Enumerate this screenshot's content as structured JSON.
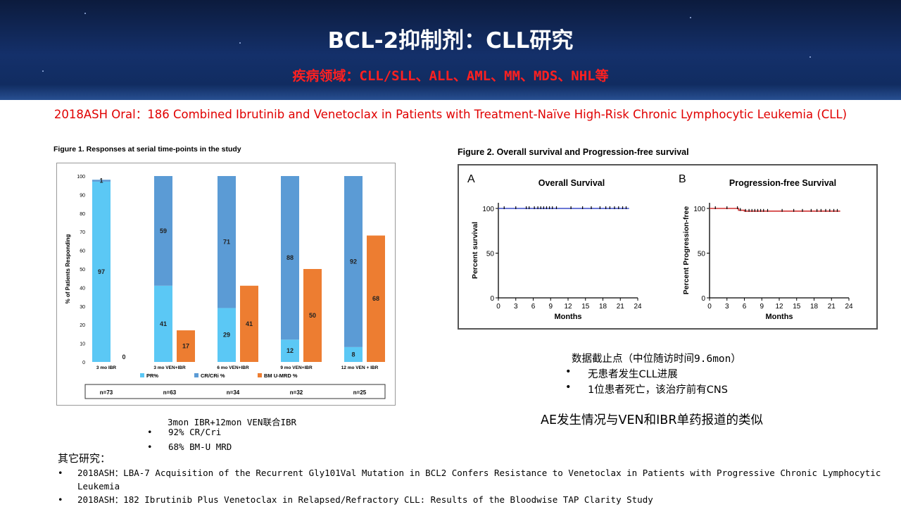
{
  "header": {
    "title": "BCL-2抑制剂：CLL研究",
    "subtitle": "疾病领域：CLL/SLL、ALL、AML、MM、MDS、NHL等"
  },
  "oral_title": "2018ASH Oral：186 Combined Ibrutinib and Venetoclax in Patients with Treatment-Naïve High-Risk Chronic Lymphocytic Leukemia (CLL)",
  "figure1": {
    "caption": "Figure 1. Responses at serial time-points in the study"
  },
  "figure2": {
    "caption": "Figure 2. Overall survival and Progression-free survival"
  },
  "chart_data": [
    {
      "type": "bar",
      "ylabel": "% of Patients Responding",
      "ylim": [
        0,
        100
      ],
      "yticks": [
        0,
        10,
        20,
        30,
        40,
        50,
        60,
        70,
        80,
        90,
        100
      ],
      "categories": [
        "3 mo IBR",
        "3 mo VEN+IBR",
        "6 mo VEN+IBR",
        "9 mo VEN+IBR",
        "12 mo VEN + IBR"
      ],
      "stacked_series": [
        {
          "name": "PR%",
          "color": "#5bc8f5",
          "values": [
            97,
            41,
            29,
            12,
            8
          ]
        },
        {
          "name": "CR/CRi %",
          "color": "#5b9bd5",
          "values": [
            1,
            59,
            71,
            88,
            92
          ]
        }
      ],
      "side_series": {
        "name": "BM U-MRD %",
        "color": "#ed7d31",
        "values": [
          0,
          17,
          41,
          50,
          68
        ]
      },
      "n_labels": [
        "n=73",
        "n=63",
        "n=34",
        "n=32",
        "n=25"
      ],
      "legend_position": "bottom"
    },
    {
      "type": "line",
      "panel": "A",
      "title": "Overall Survival",
      "xlabel": "Months",
      "ylabel": "Percent survival",
      "xlim": [
        0,
        24
      ],
      "xticks": [
        0,
        3,
        6,
        9,
        12,
        15,
        18,
        21,
        24
      ],
      "ylim": [
        0,
        100
      ],
      "yticks": [
        0,
        50,
        100
      ],
      "color": "#3b4bc8",
      "series": [
        {
          "x": [
            0,
            22.5
          ],
          "y": [
            100,
            100
          ]
        }
      ]
    },
    {
      "type": "line",
      "panel": "B",
      "title": "Progression-free Survival",
      "xlabel": "Months",
      "ylabel": "Percent Progression-free",
      "xlim": [
        0,
        24
      ],
      "xticks": [
        0,
        3,
        6,
        9,
        12,
        15,
        18,
        21,
        24
      ],
      "ylim": [
        0,
        100
      ],
      "yticks": [
        0,
        50,
        100
      ],
      "color": "#d03030",
      "series": [
        {
          "x": [
            0,
            3,
            5,
            6,
            22.5
          ],
          "y": [
            100,
            100,
            98,
            97,
            97
          ]
        }
      ]
    }
  ],
  "cutoff": {
    "heading": "数据截止点（中位随访时间9.6mon）",
    "items": [
      "无患者发生CLL进展",
      "1位患者死亡，该治疗前有CNS"
    ]
  },
  "ae_note": "AE发生情况与VEN和IBR单药报道的类似",
  "ibr_note": {
    "heading": "3mon IBR+12mon VEN联合IBR",
    "items": [
      "92% CR/Cri",
      "68% BM-U MRD"
    ]
  },
  "other": {
    "title": "其它研究：",
    "items": [
      "2018ASH：LBA-7 Acquisition of the Recurrent Gly101Val Mutation in BCL2 Confers Resistance to Venetoclax in Patients with Progressive Chronic Lymphocytic Leukemia",
      "2018ASH：182 Ibrutinib Plus Venetoclax in Relapsed/Refractory CLL: Results of the Bloodwise TAP Clarity Study"
    ]
  }
}
